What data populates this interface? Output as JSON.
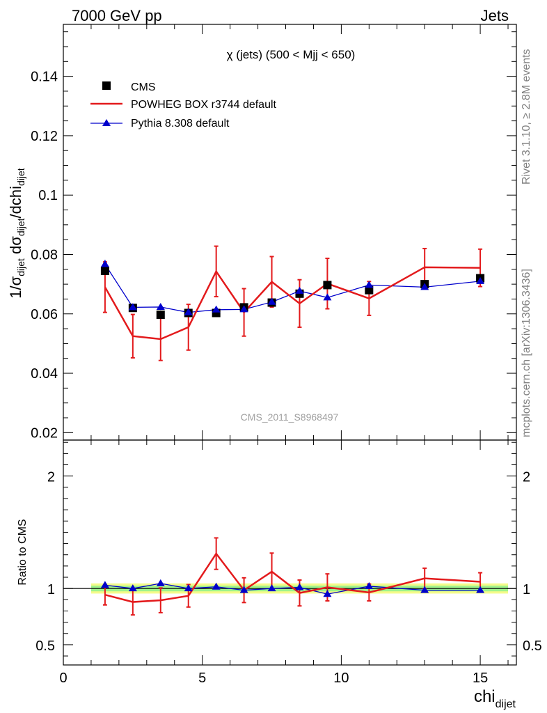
{
  "header": {
    "left": "7000 GeV pp",
    "right": "Jets"
  },
  "side": {
    "rivet": "Rivet 3.1.10, ≥ 2.8M events",
    "mcplots": "mcplots.cern.ch [arXiv:1306.3436]"
  },
  "plot_title": "χ (jets) (500 < Mjj <  650)",
  "watermark": "CMS_2011_S8968497",
  "legend": [
    {
      "label": "CMS",
      "color": "#000000",
      "marker": "square"
    },
    {
      "label": "POWHEG BOX r3744 default",
      "color": "#e31a1c",
      "marker": "line"
    },
    {
      "label": "Pythia 8.308 default",
      "color": "#0000cc",
      "marker": "triangle"
    }
  ],
  "axes": {
    "ylabel_main": "1/σdijet dσdijet/dchidijet",
    "ylabel_ratio": "Ratio to CMS",
    "xlabel": "chidijet",
    "xlim": [
      0,
      16.3
    ],
    "main_ylim": [
      0.0175,
      0.1575
    ],
    "ratio_ylim": [
      0.32,
      2.32
    ],
    "x_ticks": [
      "0",
      "5",
      "10",
      "15"
    ],
    "main_y_ticks": [
      "0.02",
      "0.04",
      "0.06",
      "0.08",
      "0.1",
      "0.12",
      "0.14"
    ],
    "ratio_y_ticks": [
      "0.5",
      "1",
      "2"
    ]
  },
  "chart_data": {
    "type": "line",
    "x": [
      1.5,
      2.5,
      3.5,
      4.5,
      5.5,
      6.5,
      7.5,
      8.5,
      9.5,
      11.0,
      13.0,
      15.0
    ],
    "bin_edges": [
      1,
      2,
      3,
      4,
      5,
      6,
      7,
      8,
      9,
      10,
      12,
      14,
      16
    ],
    "series": [
      {
        "name": "CMS",
        "values": [
          0.0745,
          0.062,
          0.0597,
          0.0603,
          0.0603,
          0.0622,
          0.0638,
          0.0668,
          0.0697,
          0.068,
          0.07,
          0.072
        ]
      },
      {
        "name": "POWHEG BOX r3744 default",
        "values": [
          0.069,
          0.0525,
          0.0515,
          0.0555,
          0.0743,
          0.0605,
          0.0708,
          0.0635,
          0.0702,
          0.0652,
          0.0757,
          0.0755
        ],
        "errors": [
          0.0085,
          0.0073,
          0.0072,
          0.0077,
          0.0085,
          0.008,
          0.0085,
          0.008,
          0.0085,
          0.0057,
          0.0063,
          0.0063
        ]
      },
      {
        "name": "Pythia 8.308 default",
        "values": [
          0.0767,
          0.0622,
          0.0623,
          0.0605,
          0.0614,
          0.0615,
          0.064,
          0.0677,
          0.0655,
          0.0697,
          0.069,
          0.071
        ],
        "errors": [
          0.0015,
          0.001,
          0.001,
          0.001,
          0.001,
          0.001,
          0.001,
          0.001,
          0.001,
          0.0008,
          0.0008,
          0.0008
        ]
      }
    ],
    "ratio": {
      "band_halfwidth": 0.025,
      "series": [
        {
          "name": "POWHEG BOX r3744 default",
          "values": [
            0.944,
            0.88,
            0.895,
            0.935,
            1.31,
            0.985,
            1.15,
            0.96,
            1.01,
            0.965,
            1.09,
            1.06
          ],
          "errors": [
            0.09,
            0.115,
            0.11,
            0.1,
            0.14,
            0.11,
            0.165,
            0.115,
            0.12,
            0.075,
            0.09,
            0.08
          ]
        },
        {
          "name": "Pythia 8.308 default",
          "values": [
            1.03,
            1.0,
            1.045,
            1.0,
            1.015,
            0.985,
            1.0,
            1.01,
            0.95,
            1.02,
            0.985,
            0.985
          ],
          "errors": [
            0.02,
            0.015,
            0.015,
            0.015,
            0.015,
            0.015,
            0.015,
            0.015,
            0.015,
            0.012,
            0.012,
            0.012
          ]
        }
      ]
    }
  }
}
